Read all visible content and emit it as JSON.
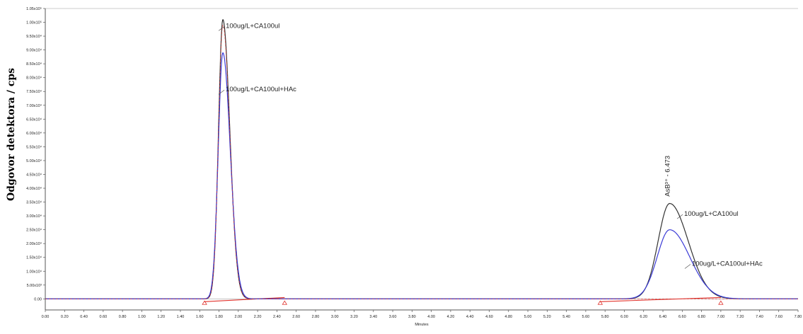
{
  "chart_data": {
    "type": "line",
    "title": "",
    "xlabel": "Minutes",
    "ylabel": "Odgovor detektora / cps",
    "xlim": [
      0.0,
      7.8
    ],
    "ylim": [
      -0.4,
      10.5
    ],
    "y_unit_label": "x10⁴",
    "x_ticks": [
      "0.00",
      "0.20",
      "0.40",
      "0.60",
      "0.80",
      "1.00",
      "1.20",
      "1.40",
      "1.60",
      "1.80",
      "2.00",
      "2.20",
      "2.40",
      "2.60",
      "2.80",
      "3.00",
      "3.20",
      "3.40",
      "3.60",
      "3.80",
      "4.00",
      "4.20",
      "4.40",
      "4.60",
      "4.80",
      "5.00",
      "5.20",
      "5.40",
      "5.60",
      "5.80",
      "6.00",
      "6.20",
      "6.40",
      "6.60",
      "6.80",
      "7.00",
      "7.20",
      "7.40",
      "7.60",
      "7.80"
    ],
    "y_ticks": [
      "0.00",
      "5.00x10³",
      "1.00x10⁴",
      "1.50x10⁴",
      "2.00x10⁴",
      "2.50x10⁴",
      "3.00x10⁴",
      "3.50x10⁴",
      "4.00x10⁴",
      "4.50x10⁴",
      "5.00x10⁴",
      "5.50x10⁴",
      "6.00x10⁴",
      "6.50x10⁴",
      "7.00x10⁴",
      "7.50x10⁴",
      "8.00x10⁴",
      "8.50x10⁴",
      "9.00x10⁴",
      "9.50x10⁴",
      "1.00x10⁵",
      "1.05x10⁵"
    ],
    "grid": false,
    "series": [
      {
        "name": "100ug/L+CA100ul",
        "color": "#333333",
        "peaks": [
          {
            "center": 1.84,
            "height": 10.1,
            "width": 0.045
          },
          {
            "center": 6.47,
            "height": 3.45,
            "width": 0.12
          }
        ]
      },
      {
        "name": "100ug/L+CA100ul+HAc",
        "color": "#3b3bd6",
        "peaks": [
          {
            "center": 1.84,
            "height": 8.9,
            "width": 0.048
          },
          {
            "center": 6.47,
            "height": 2.5,
            "width": 0.13
          }
        ]
      }
    ],
    "baseline": {
      "color": "#e0302a",
      "markers": [
        1.65,
        2.48,
        5.75,
        7.0
      ]
    },
    "annotations": [
      {
        "text": "100ug/L+CA100ul",
        "x": 1.87,
        "y": 9.8
      },
      {
        "text": "100ug/L+CA100ul+HAc",
        "x": 1.87,
        "y": 7.5
      },
      {
        "text": "100ug/L+CA100ul",
        "x": 6.62,
        "y": 3.0
      },
      {
        "text": "100ug/L+CA100ul+HAc",
        "x": 6.7,
        "y": 1.2
      },
      {
        "text": "AsB³⁺ - 6.473",
        "x": 6.47,
        "y": 3.7,
        "rotate": true
      }
    ]
  }
}
